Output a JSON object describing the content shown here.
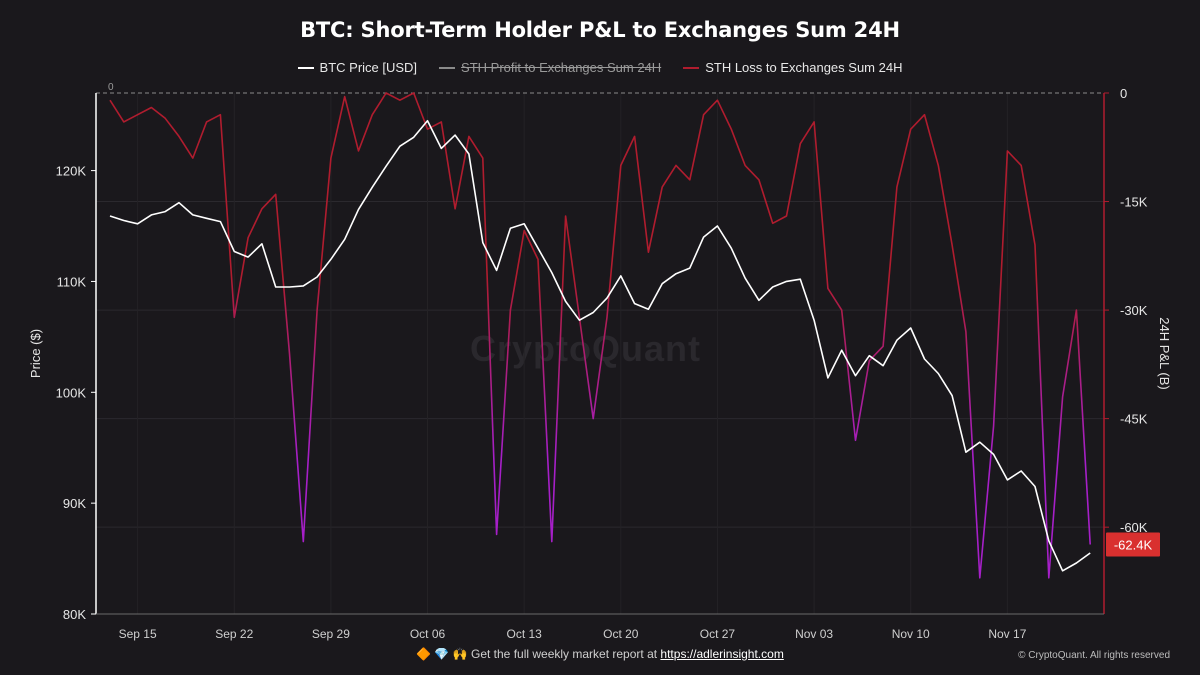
{
  "chart_data": {
    "type": "line",
    "title": "BTC: Short-Term Holder P&L to Exchanges Sum 24H",
    "ylabel_left": "Price ($)",
    "ylabel_right": "24H P&L (B)",
    "ylim_left": [
      80000,
      127000
    ],
    "ylim_right": [
      -72000,
      0
    ],
    "left_ticks": [
      {
        "value": 80000,
        "label": "80K"
      },
      {
        "value": 90000,
        "label": "90K"
      },
      {
        "value": 100000,
        "label": "100K"
      },
      {
        "value": 110000,
        "label": "110K"
      },
      {
        "value": 120000,
        "label": "120K"
      }
    ],
    "right_ticks": [
      {
        "value": 0,
        "label": "0"
      },
      {
        "value": -15000,
        "label": "-15K"
      },
      {
        "value": -30000,
        "label": "-30K"
      },
      {
        "value": -45000,
        "label": "-45K"
      },
      {
        "value": -60000,
        "label": "-60K"
      }
    ],
    "x_range": [
      "2025-09-13",
      "2025-11-24"
    ],
    "x_ticks": [
      {
        "date": "2025-09-15",
        "label": "Sep 15"
      },
      {
        "date": "2025-09-22",
        "label": "Sep 22"
      },
      {
        "date": "2025-09-29",
        "label": "Sep 29"
      },
      {
        "date": "2025-10-06",
        "label": "Oct 06"
      },
      {
        "date": "2025-10-13",
        "label": "Oct 13"
      },
      {
        "date": "2025-10-20",
        "label": "Oct 20"
      },
      {
        "date": "2025-10-27",
        "label": "Oct 27"
      },
      {
        "date": "2025-11-03",
        "label": "Nov 03"
      },
      {
        "date": "2025-11-10",
        "label": "Nov 10"
      },
      {
        "date": "2025-11-17",
        "label": "Nov 17"
      }
    ],
    "zero_line_label": "0",
    "last_value_label": "-62.4K",
    "last_value": -62400,
    "grid": true,
    "legend_position": "top-center",
    "series": [
      {
        "name": "BTC Price [USD]",
        "axis": "left",
        "color": "#ffffff",
        "visible": true,
        "points": [
          [
            "2025-09-13",
            115900
          ],
          [
            "2025-09-14",
            115500
          ],
          [
            "2025-09-15",
            115200
          ],
          [
            "2025-09-16",
            116000
          ],
          [
            "2025-09-17",
            116300
          ],
          [
            "2025-09-18",
            117100
          ],
          [
            "2025-09-19",
            116000
          ],
          [
            "2025-09-20",
            115700
          ],
          [
            "2025-09-21",
            115400
          ],
          [
            "2025-09-22",
            112700
          ],
          [
            "2025-09-23",
            112200
          ],
          [
            "2025-09-24",
            113400
          ],
          [
            "2025-09-25",
            109500
          ],
          [
            "2025-09-26",
            109500
          ],
          [
            "2025-09-27",
            109600
          ],
          [
            "2025-09-28",
            110400
          ],
          [
            "2025-09-29",
            112000
          ],
          [
            "2025-09-30",
            113800
          ],
          [
            "2025-10-01",
            116500
          ],
          [
            "2025-10-02",
            118500
          ],
          [
            "2025-10-03",
            120400
          ],
          [
            "2025-10-04",
            122200
          ],
          [
            "2025-10-05",
            123000
          ],
          [
            "2025-10-06",
            124500
          ],
          [
            "2025-10-07",
            122000
          ],
          [
            "2025-10-08",
            123200
          ],
          [
            "2025-10-09",
            121500
          ],
          [
            "2025-10-10",
            113500
          ],
          [
            "2025-10-11",
            111000
          ],
          [
            "2025-10-12",
            114800
          ],
          [
            "2025-10-13",
            115200
          ],
          [
            "2025-10-14",
            113000
          ],
          [
            "2025-10-15",
            110800
          ],
          [
            "2025-10-16",
            108200
          ],
          [
            "2025-10-17",
            106500
          ],
          [
            "2025-10-18",
            107200
          ],
          [
            "2025-10-19",
            108500
          ],
          [
            "2025-10-20",
            110500
          ],
          [
            "2025-10-21",
            108000
          ],
          [
            "2025-10-22",
            107500
          ],
          [
            "2025-10-23",
            109800
          ],
          [
            "2025-10-24",
            110700
          ],
          [
            "2025-10-25",
            111200
          ],
          [
            "2025-10-26",
            114000
          ],
          [
            "2025-10-27",
            115000
          ],
          [
            "2025-10-28",
            113000
          ],
          [
            "2025-10-29",
            110300
          ],
          [
            "2025-10-30",
            108300
          ],
          [
            "2025-10-31",
            109500
          ],
          [
            "2025-11-01",
            110000
          ],
          [
            "2025-11-02",
            110200
          ],
          [
            "2025-11-03",
            106500
          ],
          [
            "2025-11-04",
            101300
          ],
          [
            "2025-11-05",
            103800
          ],
          [
            "2025-11-06",
            101500
          ],
          [
            "2025-11-07",
            103300
          ],
          [
            "2025-11-08",
            102400
          ],
          [
            "2025-11-09",
            104700
          ],
          [
            "2025-11-10",
            105800
          ],
          [
            "2025-11-11",
            103000
          ],
          [
            "2025-11-12",
            101700
          ],
          [
            "2025-11-13",
            99700
          ],
          [
            "2025-11-14",
            94600
          ],
          [
            "2025-11-15",
            95500
          ],
          [
            "2025-11-16",
            94400
          ],
          [
            "2025-11-17",
            92100
          ],
          [
            "2025-11-18",
            92900
          ],
          [
            "2025-11-19",
            91500
          ],
          [
            "2025-11-20",
            86600
          ],
          [
            "2025-11-21",
            83900
          ],
          [
            "2025-11-22",
            84600
          ],
          [
            "2025-11-23",
            85500
          ]
        ]
      },
      {
        "name": "STH Profit to Exchanges Sum 24H",
        "axis": "right",
        "color": "#8a8a8a",
        "visible": false,
        "points": []
      },
      {
        "name": "STH Loss to Exchanges Sum 24H",
        "axis": "right",
        "color_top": "#b01c2e",
        "color_bottom": "#a61fc8",
        "visible": true,
        "points": [
          [
            "2025-09-13",
            -1000
          ],
          [
            "2025-09-14",
            -4000
          ],
          [
            "2025-09-15",
            -3000
          ],
          [
            "2025-09-16",
            -2000
          ],
          [
            "2025-09-17",
            -3500
          ],
          [
            "2025-09-18",
            -6000
          ],
          [
            "2025-09-19",
            -9000
          ],
          [
            "2025-09-20",
            -4000
          ],
          [
            "2025-09-21",
            -3000
          ],
          [
            "2025-09-22",
            -31000
          ],
          [
            "2025-09-23",
            -20000
          ],
          [
            "2025-09-24",
            -16000
          ],
          [
            "2025-09-25",
            -14000
          ],
          [
            "2025-09-26",
            -36000
          ],
          [
            "2025-09-27",
            -62000
          ],
          [
            "2025-09-28",
            -30000
          ],
          [
            "2025-09-29",
            -9000
          ],
          [
            "2025-09-30",
            -500
          ],
          [
            "2025-10-01",
            -8000
          ],
          [
            "2025-10-02",
            -3000
          ],
          [
            "2025-10-03",
            0
          ],
          [
            "2025-10-04",
            -1000
          ],
          [
            "2025-10-05",
            0
          ],
          [
            "2025-10-06",
            -5000
          ],
          [
            "2025-10-07",
            -4000
          ],
          [
            "2025-10-08",
            -16000
          ],
          [
            "2025-10-09",
            -6000
          ],
          [
            "2025-10-10",
            -9000
          ],
          [
            "2025-10-11",
            -61000
          ],
          [
            "2025-10-12",
            -30000
          ],
          [
            "2025-10-13",
            -19000
          ],
          [
            "2025-10-14",
            -23000
          ],
          [
            "2025-10-15",
            -62000
          ],
          [
            "2025-10-16",
            -17000
          ],
          [
            "2025-10-17",
            -31000
          ],
          [
            "2025-10-18",
            -45000
          ],
          [
            "2025-10-19",
            -31000
          ],
          [
            "2025-10-20",
            -10000
          ],
          [
            "2025-10-21",
            -6000
          ],
          [
            "2025-10-22",
            -22000
          ],
          [
            "2025-10-23",
            -13000
          ],
          [
            "2025-10-24",
            -10000
          ],
          [
            "2025-10-25",
            -12000
          ],
          [
            "2025-10-26",
            -3000
          ],
          [
            "2025-10-27",
            -1000
          ],
          [
            "2025-10-28",
            -5000
          ],
          [
            "2025-10-29",
            -10000
          ],
          [
            "2025-10-30",
            -12000
          ],
          [
            "2025-10-31",
            -18000
          ],
          [
            "2025-11-01",
            -17000
          ],
          [
            "2025-11-02",
            -7000
          ],
          [
            "2025-11-03",
            -4000
          ],
          [
            "2025-11-04",
            -27000
          ],
          [
            "2025-11-05",
            -30000
          ],
          [
            "2025-11-06",
            -48000
          ],
          [
            "2025-11-07",
            -37000
          ],
          [
            "2025-11-08",
            -35000
          ],
          [
            "2025-11-09",
            -13000
          ],
          [
            "2025-11-10",
            -5000
          ],
          [
            "2025-11-11",
            -3000
          ],
          [
            "2025-11-12",
            -10000
          ],
          [
            "2025-11-13",
            -21000
          ],
          [
            "2025-11-14",
            -33000
          ],
          [
            "2025-11-15",
            -67000
          ],
          [
            "2025-11-16",
            -46000
          ],
          [
            "2025-11-17",
            -8000
          ],
          [
            "2025-11-18",
            -10000
          ],
          [
            "2025-11-19",
            -21000
          ],
          [
            "2025-11-20",
            -67000
          ],
          [
            "2025-11-21",
            -42000
          ],
          [
            "2025-11-22",
            -30000
          ],
          [
            "2025-11-23",
            -62400
          ]
        ]
      }
    ]
  },
  "footer": {
    "icons": "🔶 💎 🙌",
    "text": "Get the full weekly market report at",
    "link_text": "https://adlerinsight.com",
    "copyright": "© CryptoQuant. All rights reserved"
  },
  "watermark": "CryptoQuant"
}
